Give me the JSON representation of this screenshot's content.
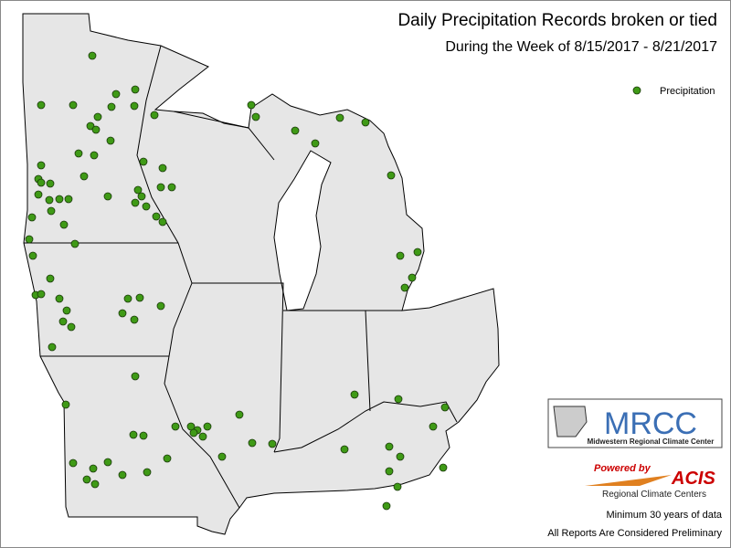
{
  "header": {
    "title": "Daily Precipitation Records broken or tied",
    "subtitle": "During the Week of 8/15/2017 - 8/21/2017"
  },
  "legend": {
    "items": [
      {
        "label": "Precipitation",
        "color": "#3f9a16"
      }
    ]
  },
  "logos": {
    "mrcc": "MRCC",
    "mrcc_name": "Midwestern Regional Climate Center",
    "powered_by": "Powered by",
    "acis": "ACIS",
    "acis_name": "Regional Climate Centers"
  },
  "notes": [
    "Minimum 30 years of data",
    "All Reports Are Considered Preliminary"
  ]
}
